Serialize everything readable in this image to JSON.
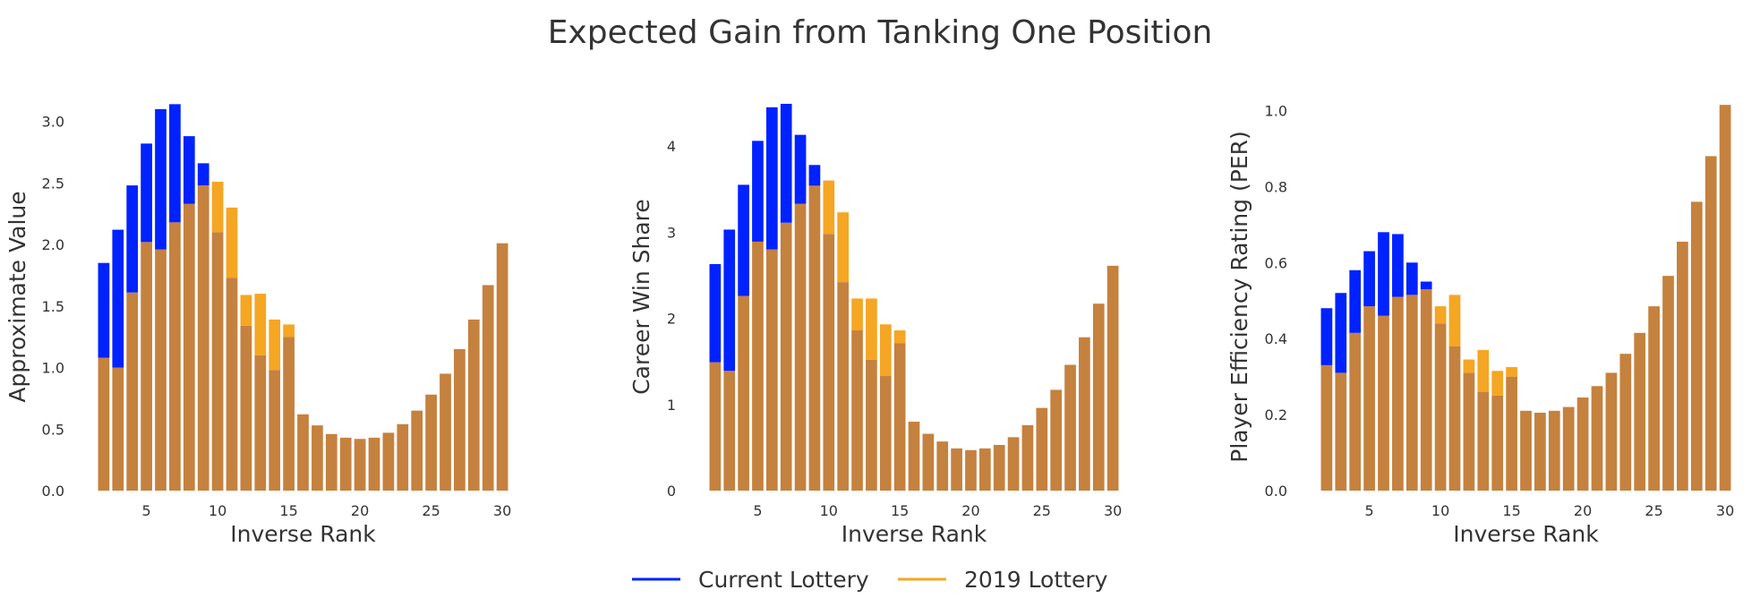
{
  "figure": {
    "title": "Expected Gain from Tanking One Position",
    "legend": [
      {
        "label": "Current Lottery",
        "color": "#0022ff"
      },
      {
        "label": "2019 Lottery",
        "color": "#f5a623"
      }
    ]
  },
  "colors": {
    "current": "#0022ff",
    "lottery2019": "#f5a623",
    "overlap": "#c5813e"
  },
  "chart_data": [
    {
      "type": "bar",
      "title": "",
      "xlabel": "Inverse Rank",
      "ylabel": "Approximate Value",
      "xlim": [
        1,
        31
      ],
      "ylim": [
        0,
        3.15
      ],
      "xticks": [
        5,
        10,
        15,
        20,
        25,
        30
      ],
      "xticklabels": [
        "5",
        "10",
        "15",
        "20",
        "25",
        "30"
      ],
      "yticks": [
        0.0,
        0.5,
        1.0,
        1.5,
        2.0,
        2.5,
        3.0
      ],
      "yticklabels": [
        "0.0",
        "0.5",
        "1.0",
        "1.5",
        "2.0",
        "2.5",
        "3.0"
      ],
      "x": [
        2,
        3,
        4,
        5,
        6,
        7,
        8,
        9,
        10,
        11,
        12,
        13,
        14,
        15,
        16,
        17,
        18,
        19,
        20,
        21,
        22,
        23,
        24,
        25,
        26,
        27,
        28,
        29,
        30
      ],
      "series": [
        {
          "name": "Current Lottery",
          "values": [
            1.85,
            2.12,
            2.48,
            2.82,
            3.1,
            3.14,
            2.88,
            2.66,
            2.1,
            1.73,
            1.34,
            1.1,
            0.98,
            1.25,
            0.62,
            0.53,
            0.46,
            0.43,
            0.42,
            0.43,
            0.47,
            0.54,
            0.65,
            0.78,
            0.95,
            1.15,
            1.39,
            1.67,
            2.01
          ]
        },
        {
          "name": "2019 Lottery",
          "values": [
            1.08,
            1.0,
            1.61,
            2.02,
            1.96,
            2.18,
            2.33,
            2.48,
            2.51,
            2.3,
            1.59,
            1.6,
            1.39,
            1.35,
            0.62,
            0.53,
            0.46,
            0.43,
            0.42,
            0.43,
            0.47,
            0.54,
            0.65,
            0.78,
            0.95,
            1.15,
            1.39,
            1.67,
            2.01
          ]
        }
      ]
    },
    {
      "type": "bar",
      "title": "",
      "xlabel": "Inverse Rank",
      "ylabel": "Career Win Share",
      "xlim": [
        1,
        31
      ],
      "ylim": [
        0,
        4.5
      ],
      "xticks": [
        5,
        10,
        15,
        20,
        25,
        30
      ],
      "xticklabels": [
        "5",
        "10",
        "15",
        "20",
        "25",
        "30"
      ],
      "yticks": [
        0,
        1,
        2,
        3,
        4
      ],
      "yticklabels": [
        "0",
        "1",
        "2",
        "3",
        "4"
      ],
      "x": [
        2,
        3,
        4,
        5,
        6,
        7,
        8,
        9,
        10,
        11,
        12,
        13,
        14,
        15,
        16,
        17,
        18,
        19,
        20,
        21,
        22,
        23,
        24,
        25,
        26,
        27,
        28,
        29,
        30
      ],
      "series": [
        {
          "name": "Current Lottery",
          "values": [
            2.63,
            3.03,
            3.55,
            4.06,
            4.45,
            4.49,
            4.13,
            3.78,
            2.98,
            2.42,
            1.86,
            1.52,
            1.33,
            1.71,
            0.8,
            0.66,
            0.57,
            0.49,
            0.47,
            0.49,
            0.53,
            0.62,
            0.76,
            0.96,
            1.17,
            1.46,
            1.78,
            2.17,
            2.61
          ]
        },
        {
          "name": "2019 Lottery",
          "values": [
            1.49,
            1.39,
            2.26,
            2.89,
            2.8,
            3.11,
            3.33,
            3.54,
            3.6,
            3.23,
            2.23,
            2.23,
            1.93,
            1.86,
            0.8,
            0.66,
            0.57,
            0.49,
            0.47,
            0.49,
            0.53,
            0.62,
            0.76,
            0.96,
            1.17,
            1.46,
            1.78,
            2.17,
            2.61
          ]
        }
      ]
    },
    {
      "type": "bar",
      "title": "",
      "xlabel": "Inverse Rank",
      "ylabel": "Player Efficiency Rating (PER)",
      "xlim": [
        1,
        31
      ],
      "ylim": [
        0,
        1.02
      ],
      "xticks": [
        5,
        10,
        15,
        20,
        25,
        30
      ],
      "xticklabels": [
        "5",
        "10",
        "15",
        "20",
        "25",
        "30"
      ],
      "yticks": [
        0.0,
        0.2,
        0.4,
        0.6,
        0.8,
        1.0
      ],
      "yticklabels": [
        "0.0",
        "0.2",
        "0.4",
        "0.6",
        "0.8",
        "1.0"
      ],
      "x": [
        2,
        3,
        4,
        5,
        6,
        7,
        8,
        9,
        10,
        11,
        12,
        13,
        14,
        15,
        16,
        17,
        18,
        19,
        20,
        21,
        22,
        23,
        24,
        25,
        26,
        27,
        28,
        29,
        30
      ],
      "series": [
        {
          "name": "Current Lottery",
          "values": [
            0.48,
            0.52,
            0.58,
            0.63,
            0.68,
            0.675,
            0.6,
            0.55,
            0.44,
            0.38,
            0.31,
            0.26,
            0.25,
            0.3,
            0.21,
            0.205,
            0.21,
            0.22,
            0.245,
            0.275,
            0.31,
            0.36,
            0.415,
            0.485,
            0.565,
            0.655,
            0.76,
            0.88,
            1.015
          ]
        },
        {
          "name": "2019 Lottery",
          "values": [
            0.33,
            0.31,
            0.415,
            0.485,
            0.46,
            0.51,
            0.515,
            0.53,
            0.485,
            0.515,
            0.345,
            0.37,
            0.315,
            0.325,
            0.21,
            0.205,
            0.21,
            0.22,
            0.245,
            0.275,
            0.31,
            0.36,
            0.415,
            0.485,
            0.565,
            0.655,
            0.76,
            0.88,
            1.015
          ]
        }
      ]
    }
  ]
}
